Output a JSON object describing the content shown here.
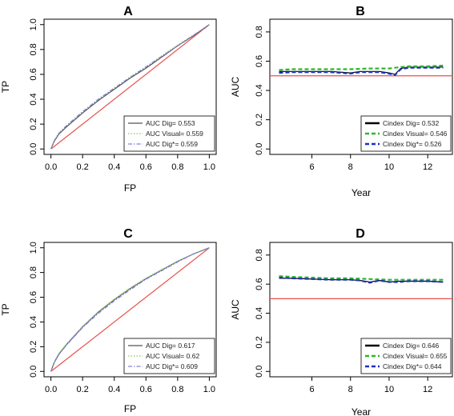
{
  "chart_data": [
    {
      "panel": "A",
      "type": "line",
      "title": "A",
      "xlabel": "FP",
      "ylabel": "TP",
      "xlim": [
        0,
        1
      ],
      "ylim": [
        0,
        1
      ],
      "xticks": [
        "0.0",
        "0.2",
        "0.4",
        "0.6",
        "0.8",
        "1.0"
      ],
      "yticks": [
        "0.0",
        "0.2",
        "0.4",
        "0.6",
        "0.8",
        "1.0"
      ],
      "legend_position": "bottom-right",
      "reference": {
        "x": [
          0,
          1
        ],
        "y": [
          0,
          1
        ],
        "color": "#e8504a"
      },
      "series": [
        {
          "name": "AUC Dig= 0.553",
          "color": "#555555",
          "style": "solid",
          "x": [
            0,
            0.02,
            0.05,
            0.1,
            0.2,
            0.3,
            0.4,
            0.5,
            0.6,
            0.7,
            0.8,
            0.9,
            1.0
          ],
          "y": [
            0,
            0.06,
            0.12,
            0.18,
            0.29,
            0.39,
            0.48,
            0.57,
            0.65,
            0.74,
            0.83,
            0.91,
            1.0
          ]
        },
        {
          "name": "AUC Visual= 0.559",
          "color": "#9ed36a",
          "style": "dotted",
          "x": [
            0,
            0.02,
            0.05,
            0.1,
            0.2,
            0.3,
            0.4,
            0.5,
            0.6,
            0.7,
            0.8,
            0.9,
            1.0
          ],
          "y": [
            0,
            0.065,
            0.13,
            0.19,
            0.3,
            0.4,
            0.49,
            0.58,
            0.66,
            0.75,
            0.835,
            0.915,
            1.0
          ]
        },
        {
          "name": "AUC Dig*= 0.559",
          "color": "#8080e0",
          "style": "dashdot",
          "x": [
            0,
            0.02,
            0.05,
            0.1,
            0.2,
            0.3,
            0.4,
            0.5,
            0.6,
            0.7,
            0.8,
            0.9,
            1.0
          ],
          "y": [
            0,
            0.065,
            0.125,
            0.19,
            0.3,
            0.4,
            0.49,
            0.575,
            0.66,
            0.745,
            0.83,
            0.915,
            1.0
          ]
        }
      ]
    },
    {
      "panel": "B",
      "type": "line",
      "title": "B",
      "xlabel": "Year",
      "ylabel": "AUC",
      "xlim": [
        4.2,
        12.9
      ],
      "ylim": [
        0,
        0.85
      ],
      "xticks": [
        "6",
        "8",
        "10",
        "12"
      ],
      "yticks": [
        "0.0",
        "0.2",
        "0.4",
        "0.6",
        "0.8"
      ],
      "legend_position": "bottom-right",
      "reference": {
        "y": 0.5,
        "color": "#e8504a"
      },
      "series": [
        {
          "name": "Cindex Dig= 0.532",
          "color": "#000000",
          "style": "solid",
          "x": [
            4.3,
            5,
            6,
            7,
            8,
            8.5,
            9,
            9.5,
            10,
            10.3,
            10.6,
            11,
            12,
            12.8
          ],
          "y": [
            0.53,
            0.53,
            0.53,
            0.53,
            0.52,
            0.53,
            0.53,
            0.53,
            0.52,
            0.51,
            0.55,
            0.56,
            0.56,
            0.56
          ]
        },
        {
          "name": "Cindex Visual= 0.546",
          "color": "#2db82d",
          "style": "dashed",
          "x": [
            4.3,
            5,
            6,
            7,
            8,
            9,
            10,
            10.6,
            11,
            12,
            12.8
          ],
          "y": [
            0.54,
            0.545,
            0.545,
            0.545,
            0.545,
            0.55,
            0.55,
            0.56,
            0.565,
            0.565,
            0.57
          ]
        },
        {
          "name": "Cindex Dig*= 0.526",
          "color": "#1f2fbf",
          "style": "dashed",
          "x": [
            4.3,
            5,
            6,
            7,
            8,
            8.5,
            9,
            9.5,
            10,
            10.3,
            10.6,
            11,
            12,
            12.8
          ],
          "y": [
            0.52,
            0.525,
            0.525,
            0.525,
            0.515,
            0.525,
            0.525,
            0.525,
            0.515,
            0.505,
            0.545,
            0.555,
            0.555,
            0.555
          ]
        }
      ]
    },
    {
      "panel": "C",
      "type": "line",
      "title": "C",
      "xlabel": "FP",
      "ylabel": "TP",
      "xlim": [
        0,
        1
      ],
      "ylim": [
        0,
        1
      ],
      "xticks": [
        "0.0",
        "0.2",
        "0.4",
        "0.6",
        "0.8",
        "1.0"
      ],
      "yticks": [
        "0.0",
        "0.2",
        "0.4",
        "0.6",
        "0.8",
        "1.0"
      ],
      "legend_position": "bottom-right",
      "reference": {
        "x": [
          0,
          1
        ],
        "y": [
          0,
          1
        ],
        "color": "#e8504a"
      },
      "series": [
        {
          "name": "AUC Dig= 0.617",
          "color": "#555555",
          "style": "solid",
          "x": [
            0,
            0.02,
            0.05,
            0.1,
            0.2,
            0.3,
            0.4,
            0.5,
            0.6,
            0.7,
            0.8,
            0.9,
            1.0
          ],
          "y": [
            0,
            0.07,
            0.14,
            0.22,
            0.36,
            0.48,
            0.58,
            0.67,
            0.75,
            0.82,
            0.89,
            0.95,
            1.0
          ]
        },
        {
          "name": "AUC Visual= 0.62",
          "color": "#9ed36a",
          "style": "dotted",
          "x": [
            0,
            0.02,
            0.05,
            0.1,
            0.2,
            0.3,
            0.4,
            0.5,
            0.6,
            0.7,
            0.8,
            0.9,
            1.0
          ],
          "y": [
            0,
            0.075,
            0.145,
            0.225,
            0.365,
            0.485,
            0.585,
            0.675,
            0.755,
            0.825,
            0.89,
            0.95,
            1.0
          ]
        },
        {
          "name": "AUC Dig*= 0.609",
          "color": "#8080e0",
          "style": "dashdot",
          "x": [
            0,
            0.02,
            0.05,
            0.1,
            0.2,
            0.3,
            0.4,
            0.5,
            0.6,
            0.7,
            0.8,
            0.9,
            1.0
          ],
          "y": [
            0,
            0.07,
            0.135,
            0.215,
            0.355,
            0.47,
            0.57,
            0.66,
            0.745,
            0.815,
            0.885,
            0.95,
            1.0
          ]
        }
      ]
    },
    {
      "panel": "D",
      "type": "line",
      "title": "D",
      "xlabel": "Year",
      "ylabel": "AUC",
      "xlim": [
        4.2,
        12.9
      ],
      "ylim": [
        0,
        0.85
      ],
      "xticks": [
        "6",
        "8",
        "10",
        "12"
      ],
      "yticks": [
        "0.0",
        "0.2",
        "0.4",
        "0.6",
        "0.8"
      ],
      "legend_position": "bottom-right",
      "reference": {
        "y": 0.5,
        "color": "#e8504a"
      },
      "series": [
        {
          "name": "Cindex Dig= 0.646",
          "color": "#000000",
          "style": "solid",
          "x": [
            4.3,
            5,
            6,
            7,
            8,
            8.5,
            9,
            9.5,
            10,
            10.5,
            11,
            12,
            12.8
          ],
          "y": [
            0.64,
            0.64,
            0.635,
            0.63,
            0.63,
            0.625,
            0.615,
            0.625,
            0.615,
            0.62,
            0.62,
            0.62,
            0.615
          ]
        },
        {
          "name": "Cindex Visual= 0.655",
          "color": "#2db82d",
          "style": "dashed",
          "x": [
            4.3,
            5,
            6,
            7,
            8,
            9,
            10,
            11,
            12,
            12.8
          ],
          "y": [
            0.655,
            0.65,
            0.645,
            0.64,
            0.64,
            0.635,
            0.63,
            0.63,
            0.63,
            0.63
          ]
        },
        {
          "name": "Cindex Dig*= 0.644",
          "color": "#1f2fbf",
          "style": "dashed",
          "x": [
            4.3,
            5,
            6,
            7,
            8,
            8.5,
            9,
            9.5,
            10,
            10.5,
            11,
            12,
            12.8
          ],
          "y": [
            0.645,
            0.64,
            0.635,
            0.63,
            0.63,
            0.625,
            0.61,
            0.625,
            0.615,
            0.615,
            0.62,
            0.62,
            0.615
          ]
        }
      ]
    }
  ]
}
